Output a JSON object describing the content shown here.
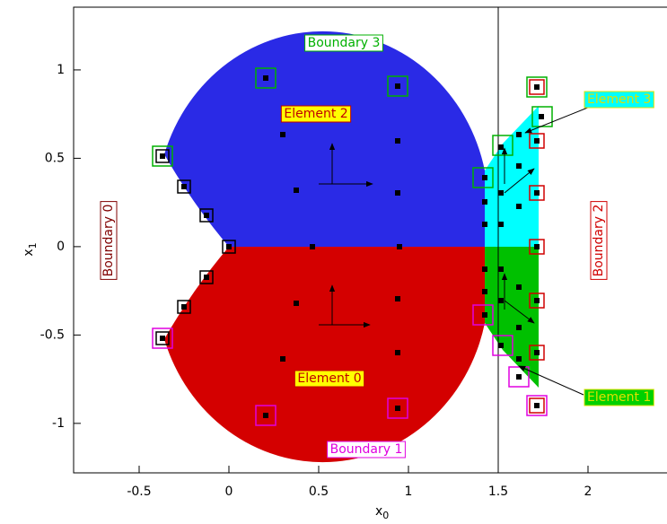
{
  "chart_data": {
    "type": "mesh",
    "xlabel": "x",
    "xlabel_sub": "0",
    "ylabel": "x",
    "ylabel_sub": "1",
    "xlim": [
      -0.865,
      2.44
    ],
    "ylim": [
      -1.28,
      1.355
    ],
    "xticks": [
      -0.5,
      0,
      0.5,
      1,
      1.5,
      2
    ],
    "yticks": [
      -1,
      -0.5,
      0,
      0.5,
      1
    ],
    "annotations": [
      {
        "text": "Boundary 0",
        "color": "#800000",
        "bg": "#ffffff"
      },
      {
        "text": "Boundary 1",
        "color": "#e000e0",
        "bg": "#ffffff"
      },
      {
        "text": "Boundary 2",
        "color": "#d00000",
        "bg": "#ffffff"
      },
      {
        "text": "Boundary 3",
        "color": "#00b000",
        "bg": "#ffffff"
      },
      {
        "text": "Element 2",
        "color": "#c00000",
        "bg": "#ffff00"
      },
      {
        "text": "Element 0",
        "color": "#c00000",
        "bg": "#ffff00"
      },
      {
        "text": "Element 3",
        "color": "#e0e000",
        "bg": "#00ffff"
      },
      {
        "text": "Element 1",
        "color": "#e0e000",
        "bg": "#00d000"
      }
    ]
  }
}
